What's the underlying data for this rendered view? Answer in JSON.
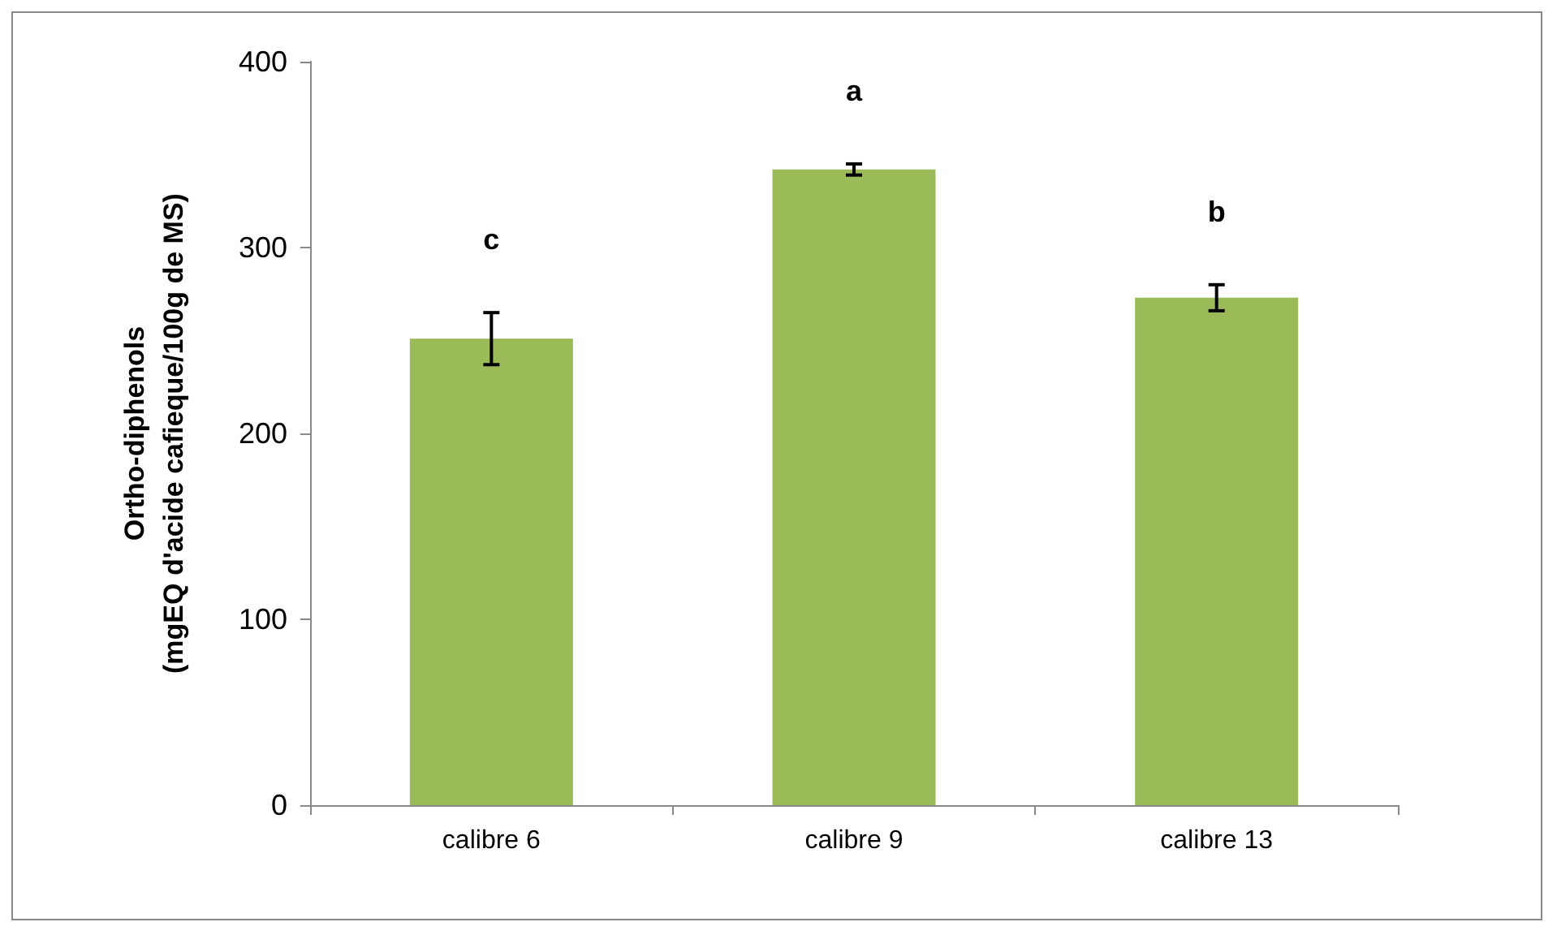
{
  "chart_data": {
    "type": "bar",
    "ylabel": "Ortho-diphenols\n(mgEQ d'acide cafieque/100g de MS)",
    "categories": [
      "calibre 6",
      "calibre 9",
      "calibre 13"
    ],
    "values": [
      251,
      342,
      273
    ],
    "errors": [
      14,
      3,
      7
    ],
    "color": "#9bbb59",
    "ylim": [
      0,
      400
    ],
    "yticks": [
      0,
      100,
      200,
      300,
      400
    ],
    "grid": false,
    "annotations": [
      "c",
      "a",
      "b"
    ]
  }
}
